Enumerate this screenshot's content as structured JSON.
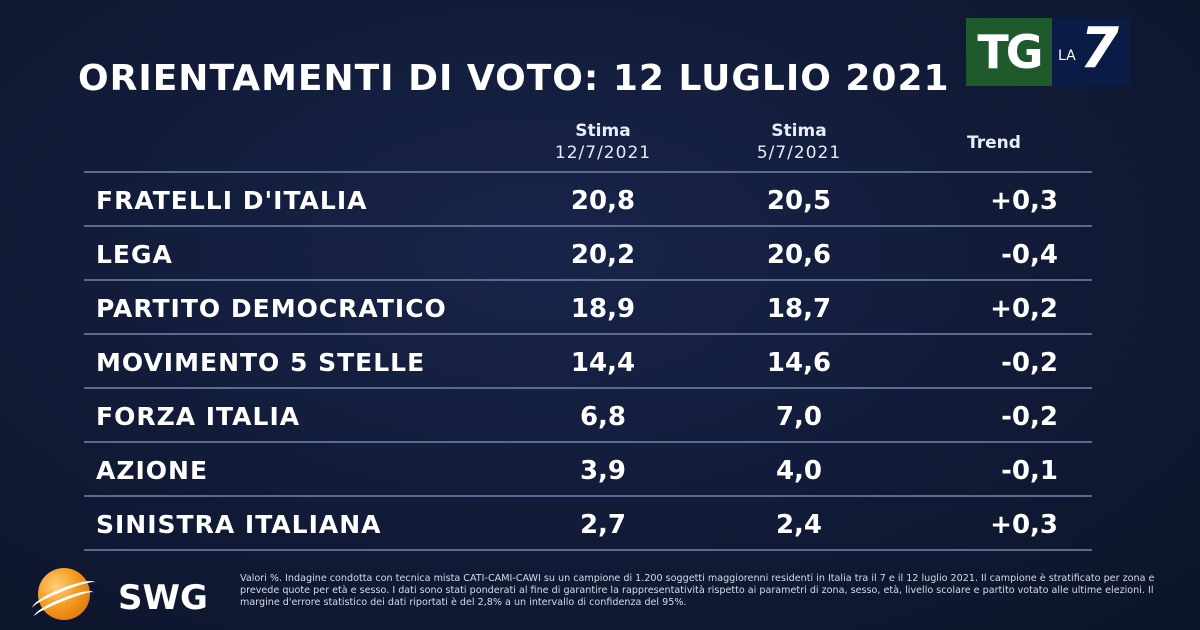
{
  "title": "ORIENTAMENTI DI VOTO: 12 LUGLIO 2021",
  "logo": {
    "tg": "TG",
    "la": "LA",
    "seven": "7"
  },
  "table": {
    "headers": [
      {
        "line1": "Stima",
        "line2": "12/7/2021"
      },
      {
        "line1": "Stima",
        "line2": "5/7/2021"
      },
      {
        "line1": "Trend",
        "line2": ""
      }
    ],
    "rows": [
      {
        "party": "FRATELLI D'ITALIA",
        "current": "20,8",
        "previous": "20,5",
        "trend": "+0,3"
      },
      {
        "party": "LEGA",
        "current": "20,2",
        "previous": "20,6",
        "trend": "-0,4"
      },
      {
        "party": "PARTITO DEMOCRATICO",
        "current": "18,9",
        "previous": "18,7",
        "trend": "+0,2"
      },
      {
        "party": "MOVIMENTO 5 STELLE",
        "current": "14,4",
        "previous": "14,6",
        "trend": "-0,2"
      },
      {
        "party": "FORZA ITALIA",
        "current": "6,8",
        "previous": "7,0",
        "trend": "-0,2"
      },
      {
        "party": "AZIONE",
        "current": "3,9",
        "previous": "4,0",
        "trend": "-0,1"
      },
      {
        "party": "SINISTRA ITALIANA",
        "current": "2,7",
        "previous": "2,4",
        "trend": "+0,3"
      }
    ]
  },
  "footer": {
    "brand": "SWG",
    "note": "Valori %. Indagine condotta con tecnica mista CATI-CAMI-CAWI su un campione di 1.200 soggetti maggiorenni residenti in Italia tra il 7 e il 12 luglio 2021. Il campione è stratificato per zona e prevede quote per età e sesso. I dati sono stati ponderati al fine di garantire la rappresentatività rispetto ai parametri di zona, sesso, età, livello scolare e partito votato alle ultime elezioni. Il margine d'errore statistico dei dati riportati è del 2,8% a un intervallo di confidenza del 95%."
  },
  "chart_data": {
    "type": "table",
    "title": "ORIENTAMENTI DI VOTO: 12 LUGLIO 2021",
    "columns": [
      "Stima 12/7/2021",
      "Stima 5/7/2021",
      "Trend"
    ],
    "categories": [
      "FRATELLI D'ITALIA",
      "LEGA",
      "PARTITO DEMOCRATICO",
      "MOVIMENTO 5 STELLE",
      "FORZA ITALIA",
      "AZIONE",
      "SINISTRA ITALIANA"
    ],
    "series": [
      {
        "name": "Stima 12/7/2021",
        "values": [
          20.8,
          20.2,
          18.9,
          14.4,
          6.8,
          3.9,
          2.7
        ]
      },
      {
        "name": "Stima 5/7/2021",
        "values": [
          20.5,
          20.6,
          18.7,
          14.6,
          7.0,
          4.0,
          2.4
        ]
      },
      {
        "name": "Trend",
        "values": [
          0.3,
          -0.4,
          0.2,
          -0.2,
          -0.2,
          -0.1,
          0.3
        ]
      }
    ],
    "unit": "%"
  }
}
